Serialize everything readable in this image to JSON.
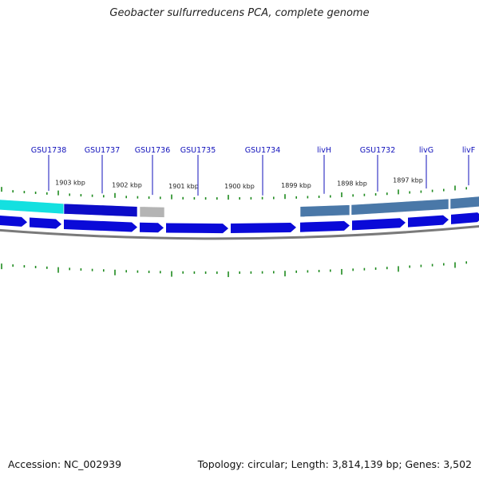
{
  "header": {
    "title": "Geobacter sulfurreducens PCA, complete genome"
  },
  "footer": {
    "accession": "Accession: NC_002939",
    "topology": "Topology: circular; Length: 3,814,139 bp; Genes: 3,502"
  },
  "colors": {
    "gene_label": "#1010bb",
    "tick": "#1e8a1e",
    "cds": "#0a0ad8",
    "bar_cyan": "#14e0e0",
    "bar_blue": "#0c0cc8",
    "bar_grey": "#b4b4b4",
    "bar_steel": "#4a78a8",
    "backbone": "#7a7a7a"
  },
  "kbp_labels": [
    "1903 kbp",
    "1902 kbp",
    "1901 kbp",
    "1900 kbp",
    "1899 kbp",
    "1898 kbp",
    "1897 kbp"
  ],
  "genes": [
    "GSU1738",
    "GSU1737",
    "GSU1736",
    "GSU1735",
    "GSU1734",
    "livH",
    "GSU1732",
    "livG",
    "livF"
  ]
}
